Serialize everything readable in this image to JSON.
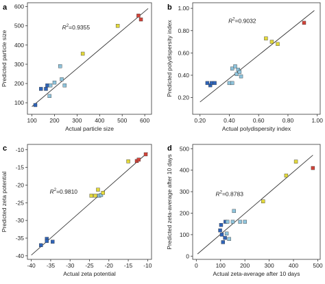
{
  "colors": {
    "blue": "#2f64b8",
    "lightblue": "#8fc4dc",
    "yellow": "#e2d83c",
    "red": "#d2443a"
  },
  "chart_data": [
    {
      "type": "scatter",
      "panel": "a",
      "xlabel": "Actual particle size",
      "ylabel": "Predicted particle size",
      "xlim": [
        80,
        630
      ],
      "ylim": [
        40,
        620
      ],
      "xticks": [
        100,
        200,
        300,
        400,
        500,
        600
      ],
      "yticks": [
        100,
        200,
        300,
        400,
        500,
        600
      ],
      "r2_prefix": "R",
      "r2_sup": "2",
      "r2_value": "=0.9355",
      "fit_line": [
        [
          100,
          80
        ],
        [
          615,
          590
        ]
      ],
      "points": [
        {
          "x": 115,
          "y": 88,
          "color": "blue"
        },
        {
          "x": 140,
          "y": 172,
          "color": "blue"
        },
        {
          "x": 162,
          "y": 172,
          "color": "blue"
        },
        {
          "x": 168,
          "y": 190,
          "color": "blue"
        },
        {
          "x": 178,
          "y": 135,
          "color": "lightblue"
        },
        {
          "x": 182,
          "y": 190,
          "color": "lightblue"
        },
        {
          "x": 200,
          "y": 205,
          "color": "lightblue"
        },
        {
          "x": 225,
          "y": 290,
          "color": "lightblue"
        },
        {
          "x": 232,
          "y": 222,
          "color": "lightblue"
        },
        {
          "x": 245,
          "y": 190,
          "color": "lightblue"
        },
        {
          "x": 325,
          "y": 355,
          "color": "yellow"
        },
        {
          "x": 480,
          "y": 500,
          "color": "yellow"
        },
        {
          "x": 572,
          "y": 553,
          "color": "red"
        },
        {
          "x": 583,
          "y": 533,
          "color": "red"
        }
      ]
    },
    {
      "type": "scatter",
      "panel": "b",
      "xlabel": "Actual polydispersity index",
      "ylabel": "Predicted polydispersity index",
      "xlim": [
        0.15,
        1.02
      ],
      "ylim": [
        0.05,
        1.05
      ],
      "xticks": [
        "0.20",
        "0.40",
        "0.60",
        "0.80",
        "1.00"
      ],
      "yticks": [
        "0.20",
        "0.40",
        "0.60",
        "0.80",
        "1.00"
      ],
      "r2_prefix": "R",
      "r2_sup": "2",
      "r2_value": "=0.9032",
      "fit_line": [
        [
          0.2,
          0.16
        ],
        [
          0.98,
          0.98
        ]
      ],
      "points": [
        {
          "x": 0.25,
          "y": 0.33,
          "color": "blue"
        },
        {
          "x": 0.27,
          "y": 0.31,
          "color": "blue"
        },
        {
          "x": 0.28,
          "y": 0.33,
          "color": "blue"
        },
        {
          "x": 0.3,
          "y": 0.33,
          "color": "blue"
        },
        {
          "x": 0.4,
          "y": 0.33,
          "color": "lightblue"
        },
        {
          "x": 0.42,
          "y": 0.33,
          "color": "lightblue"
        },
        {
          "x": 0.42,
          "y": 0.46,
          "color": "lightblue"
        },
        {
          "x": 0.44,
          "y": 0.48,
          "color": "lightblue"
        },
        {
          "x": 0.45,
          "y": 0.41,
          "color": "lightblue"
        },
        {
          "x": 0.46,
          "y": 0.45,
          "color": "lightblue"
        },
        {
          "x": 0.47,
          "y": 0.43,
          "color": "lightblue"
        },
        {
          "x": 0.48,
          "y": 0.39,
          "color": "lightblue"
        },
        {
          "x": 0.65,
          "y": 0.73,
          "color": "yellow"
        },
        {
          "x": 0.69,
          "y": 0.7,
          "color": "yellow"
        },
        {
          "x": 0.73,
          "y": 0.68,
          "color": "yellow"
        },
        {
          "x": 0.91,
          "y": 0.87,
          "color": "red"
        }
      ]
    },
    {
      "type": "scatter",
      "panel": "c",
      "xlabel": "Actual zeta potential",
      "ylabel": "Predicted zeta potential",
      "xlim": [
        -41,
        -9
      ],
      "ylim": [
        -41,
        -8.5
      ],
      "xticks": [
        -40,
        -35,
        -30,
        -25,
        -20,
        -15,
        -10
      ],
      "yticks": [
        -40,
        -35,
        -30,
        -25,
        -20,
        -15,
        -10
      ],
      "r2_prefix": "R",
      "r2_sup": "2",
      "r2_value": "=0.9810",
      "fit_line": [
        [
          -40,
          -39.8
        ],
        [
          -10,
          -10.8
        ]
      ],
      "points": [
        {
          "x": -37.5,
          "y": -37.0,
          "color": "blue"
        },
        {
          "x": -36.0,
          "y": -35.2,
          "color": "blue"
        },
        {
          "x": -36.0,
          "y": -35.8,
          "color": "blue"
        },
        {
          "x": -34.5,
          "y": -36.0,
          "color": "blue"
        },
        {
          "x": -24.5,
          "y": -23.0,
          "color": "yellow"
        },
        {
          "x": -23.5,
          "y": -23.0,
          "color": "yellow"
        },
        {
          "x": -22.8,
          "y": -21.3,
          "color": "yellow"
        },
        {
          "x": -22.5,
          "y": -23.0,
          "color": "lightblue"
        },
        {
          "x": -22.0,
          "y": -22.8,
          "color": "lightblue"
        },
        {
          "x": -21.5,
          "y": -22.2,
          "color": "yellow"
        },
        {
          "x": -15.0,
          "y": -13.3,
          "color": "yellow"
        },
        {
          "x": -12.8,
          "y": -13.2,
          "color": "red"
        },
        {
          "x": -12.3,
          "y": -12.8,
          "color": "red"
        },
        {
          "x": -10.5,
          "y": -11.3,
          "color": "red"
        }
      ]
    },
    {
      "type": "scatter",
      "panel": "d",
      "xlabel": "Actual zeta-average after 10 days",
      "ylabel": "Predicted zeta-average after 10 days",
      "xlim": [
        -15,
        510
      ],
      "ylim": [
        -15,
        520
      ],
      "xticks": [
        0,
        100,
        200,
        300,
        400,
        500
      ],
      "yticks": [
        0,
        100,
        200,
        300,
        400,
        500
      ],
      "r2_prefix": "R",
      "r2_sup": "2",
      "r2_value": "=0.8783",
      "fit_line": [
        [
          5,
          10
        ],
        [
          480,
          470
        ]
      ],
      "points": [
        {
          "x": 98,
          "y": 120,
          "color": "blue"
        },
        {
          "x": 102,
          "y": 145,
          "color": "blue"
        },
        {
          "x": 105,
          "y": 100,
          "color": "blue"
        },
        {
          "x": 110,
          "y": 65,
          "color": "blue"
        },
        {
          "x": 118,
          "y": 85,
          "color": "blue"
        },
        {
          "x": 120,
          "y": 160,
          "color": "blue"
        },
        {
          "x": 125,
          "y": 105,
          "color": "lightblue"
        },
        {
          "x": 128,
          "y": 160,
          "color": "lightblue"
        },
        {
          "x": 135,
          "y": 80,
          "color": "lightblue"
        },
        {
          "x": 150,
          "y": 160,
          "color": "lightblue"
        },
        {
          "x": 155,
          "y": 210,
          "color": "lightblue"
        },
        {
          "x": 180,
          "y": 160,
          "color": "lightblue"
        },
        {
          "x": 200,
          "y": 160,
          "color": "lightblue"
        },
        {
          "x": 275,
          "y": 255,
          "color": "yellow"
        },
        {
          "x": 370,
          "y": 375,
          "color": "yellow"
        },
        {
          "x": 410,
          "y": 440,
          "color": "yellow"
        },
        {
          "x": 480,
          "y": 410,
          "color": "red"
        }
      ]
    }
  ]
}
